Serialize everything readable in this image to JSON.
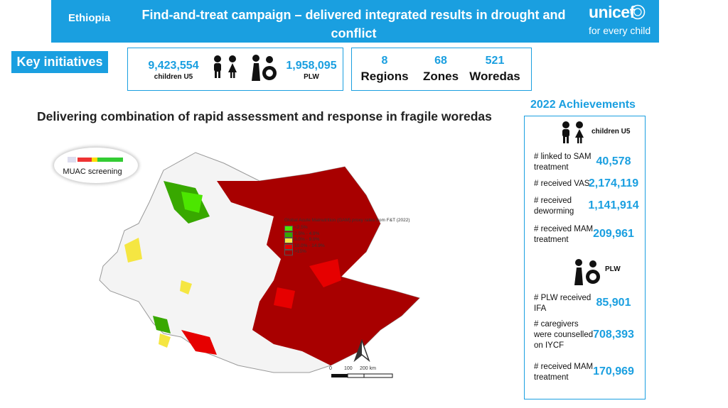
{
  "header": {
    "country": "Ethiopia",
    "title": "Find-and-treat campaign – delivered integrated results in drought and conflict",
    "logo": "unicef",
    "tagline": "for every child"
  },
  "key_initiatives": {
    "label": "Key initiatives",
    "children": {
      "value": "9,423,554",
      "label": "children U5"
    },
    "plw": {
      "value": "1,958,095",
      "label": "PLW"
    }
  },
  "coverage": [
    {
      "value": "8",
      "label": "Regions"
    },
    {
      "value": "68",
      "label": "Zones"
    },
    {
      "value": "521",
      "label": "Woredas"
    }
  ],
  "map": {
    "title": "Delivering combination of rapid assessment and response in fragile woredas",
    "muac": "MUAC screening",
    "legend_title": "Global Acute Malnutrition (GAM) proxy rates from F&T (2022)",
    "legend": [
      {
        "label": "<2.5%",
        "color": "#4ce600"
      },
      {
        "label": "2.5% - 4.9%",
        "color": "#38a800"
      },
      {
        "label": "5.0% - 9.9%",
        "color": "#f5e642"
      },
      {
        "label": "10.0% - 14.9%",
        "color": "#e60000"
      },
      {
        "label": ">15%",
        "color": "#a80000"
      }
    ],
    "scale": [
      "0",
      "100",
      "200 km"
    ]
  },
  "achievements": {
    "title": "2022 Achievements",
    "groups": [
      {
        "label": "children U5",
        "items": [
          {
            "label": "# linked to SAM treatment",
            "value": "40,578"
          },
          {
            "label": "# received VAS",
            "value": "2,174,119"
          },
          {
            "label": "# received deworming",
            "value": "1,141,914"
          },
          {
            "label": "# received MAM treatment",
            "value": "209,961"
          }
        ]
      },
      {
        "label": "PLW",
        "items": [
          {
            "label": "# PLW received IFA",
            "value": "85,901"
          },
          {
            "label": "# caregivers were counselled on IYCF",
            "value": "708,393"
          },
          {
            "label": "# received MAM treatment",
            "value": "170,969"
          }
        ]
      }
    ]
  }
}
